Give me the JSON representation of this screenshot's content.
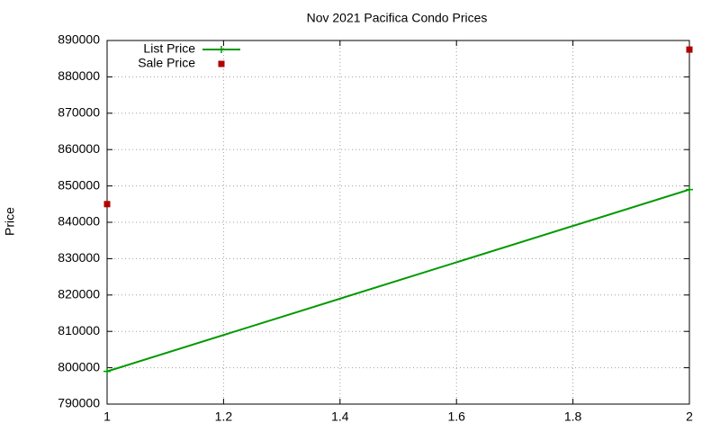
{
  "chart_data": {
    "type": "line",
    "title": "Nov 2021 Pacifica Condo Prices",
    "y_label": "Price",
    "x": [
      1,
      2
    ],
    "series": [
      {
        "name": "List Price",
        "color": "#009900",
        "style": "line",
        "marker": "plus",
        "values": [
          799000,
          849000
        ]
      },
      {
        "name": "Sale Price",
        "color": "#b00000",
        "style": "points",
        "marker": "square",
        "values": [
          845000,
          887500
        ]
      }
    ],
    "xlim": [
      1,
      2
    ],
    "xticks": [
      1,
      1.2,
      1.4,
      1.6,
      1.8,
      2
    ],
    "ylim": [
      790000,
      890000
    ],
    "yticks": [
      790000,
      800000,
      810000,
      820000,
      830000,
      840000,
      850000,
      860000,
      870000,
      880000,
      890000
    ],
    "grid": true,
    "legend": "top-left"
  }
}
